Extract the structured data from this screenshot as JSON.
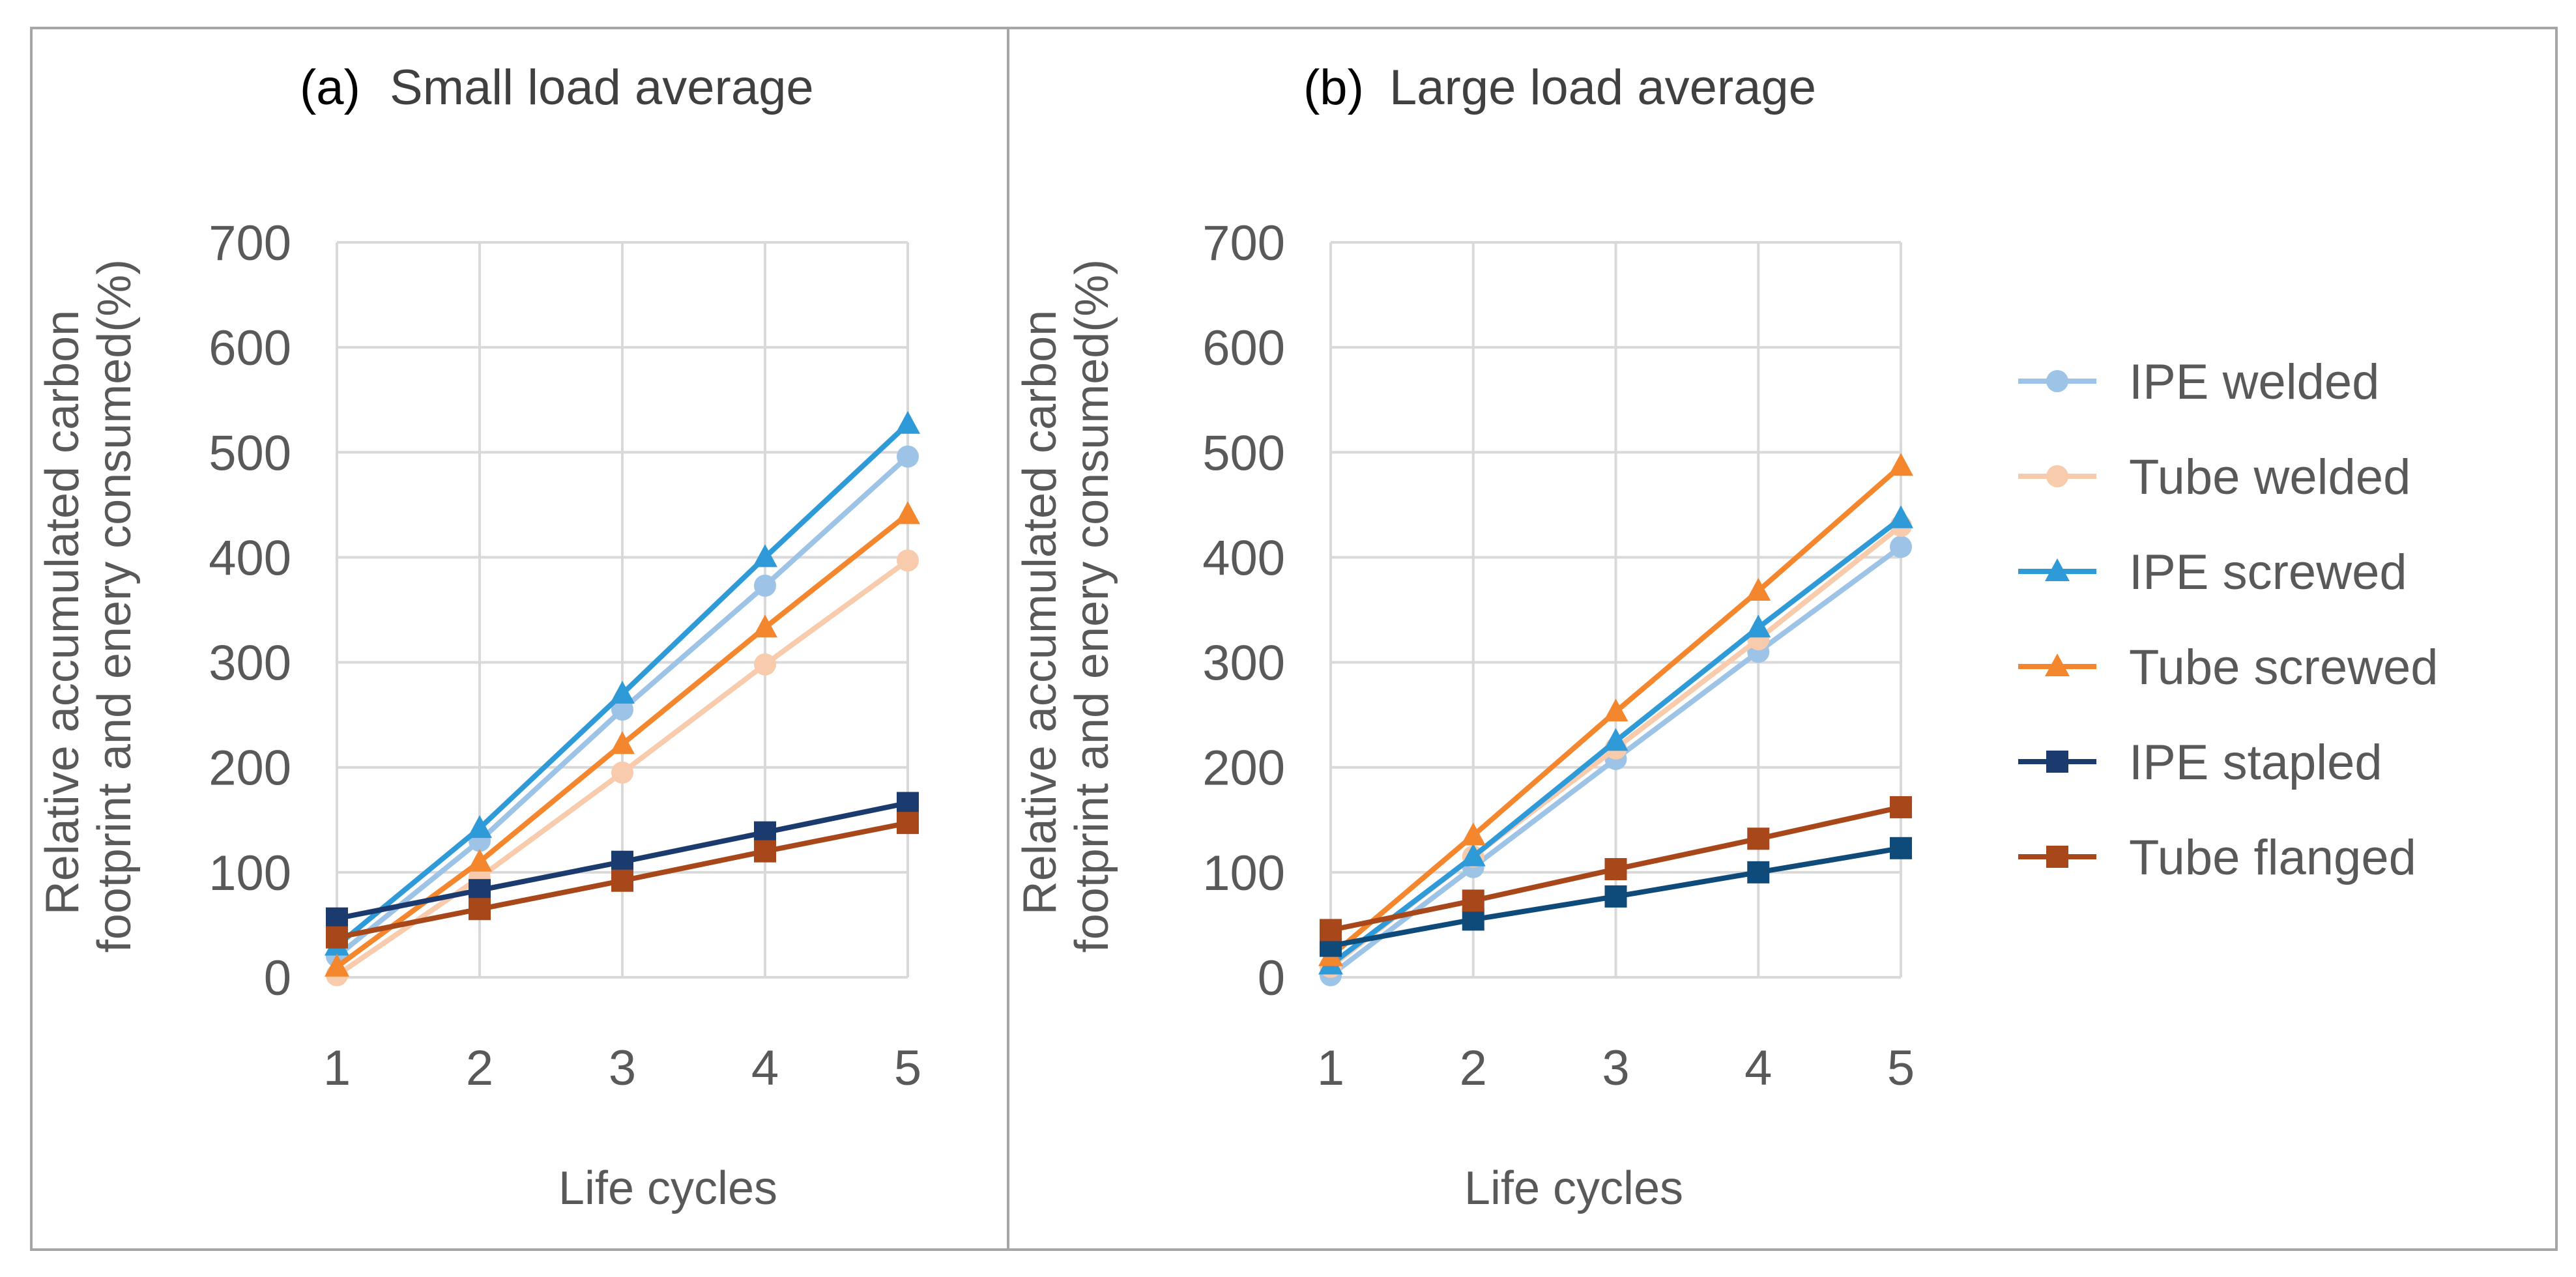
{
  "chart_data": [
    {
      "type": "line",
      "panel": "(a)",
      "title": "Small load average",
      "xlabel": "Life cycles",
      "ylabel": "Relative accumulated carbon footprint and enery consumed(%)",
      "categories": [
        "1",
        "2",
        "3",
        "4",
        "5"
      ],
      "ylim": [
        0,
        700
      ],
      "yticks": [
        0,
        100,
        200,
        300,
        400,
        500,
        600,
        700
      ],
      "grid": true,
      "series": [
        {
          "name": "IPE welded",
          "marker": "circle",
          "color": "#9DC3E6",
          "values": [
            20,
            130,
            255,
            373,
            496
          ]
        },
        {
          "name": "Tube welded",
          "marker": "circle",
          "color": "#F8CBAD",
          "values": [
            2,
            95,
            195,
            298,
            397
          ]
        },
        {
          "name": "IPE screwed",
          "marker": "triangle",
          "color": "#2E9AD8",
          "values": [
            30,
            142,
            270,
            400,
            527
          ]
        },
        {
          "name": "Tube screwed",
          "marker": "triangle",
          "color": "#F4862D",
          "values": [
            10,
            110,
            222,
            333,
            441
          ]
        },
        {
          "name": "IPE stapled",
          "marker": "square",
          "color": "#1B3B6F",
          "values": [
            56,
            83,
            110,
            138,
            166
          ]
        },
        {
          "name": "Tube flanged",
          "marker": "square",
          "color": "#A8471A",
          "values": [
            38,
            65,
            92,
            120,
            147
          ]
        }
      ]
    },
    {
      "type": "line",
      "panel": "(b)",
      "title": "Large load average",
      "xlabel": "Life cycles",
      "ylabel": "Relative accumulated carbon footprint and enery consumed(%)",
      "categories": [
        "1",
        "2",
        "3",
        "4",
        "5"
      ],
      "ylim": [
        0,
        700
      ],
      "yticks": [
        0,
        100,
        200,
        300,
        400,
        500,
        600,
        700
      ],
      "grid": true,
      "series": [
        {
          "name": "IPE welded",
          "marker": "circle",
          "color": "#9DC3E6",
          "values": [
            2,
            105,
            208,
            310,
            410
          ]
        },
        {
          "name": "Tube welded",
          "marker": "circle",
          "color": "#F8CBAD",
          "values": [
            10,
            115,
            218,
            322,
            430
          ]
        },
        {
          "name": "IPE screwed",
          "marker": "triangle",
          "color": "#2E9AD8",
          "values": [
            12,
            115,
            225,
            333,
            437
          ]
        },
        {
          "name": "Tube screwed",
          "marker": "triangle",
          "color": "#F4862D",
          "values": [
            20,
            135,
            253,
            368,
            487
          ]
        },
        {
          "name": "IPE stapled",
          "marker": "square",
          "color": "#0E4A7A",
          "values": [
            30,
            55,
            77,
            100,
            123
          ]
        },
        {
          "name": "Tube flanged",
          "marker": "square",
          "color": "#A8471A",
          "values": [
            45,
            73,
            103,
            132,
            162
          ]
        }
      ]
    }
  ],
  "legend": {
    "position": "right",
    "items": [
      {
        "label": "IPE welded",
        "marker": "circle",
        "color": "#9DC3E6"
      },
      {
        "label": "Tube welded",
        "marker": "circle",
        "color": "#F8CBAD"
      },
      {
        "label": "IPE screwed",
        "marker": "triangle",
        "color": "#2E9AD8"
      },
      {
        "label": "Tube screwed",
        "marker": "triangle",
        "color": "#F4862D"
      },
      {
        "label": "IPE stapled",
        "marker": "square",
        "color": "#1B3B6F"
      },
      {
        "label": "Tube flanged",
        "marker": "square",
        "color": "#A8471A"
      }
    ]
  },
  "colors": {
    "grid": "#D9D9D9",
    "frame": "#A6A6A6",
    "text": "#595959"
  }
}
